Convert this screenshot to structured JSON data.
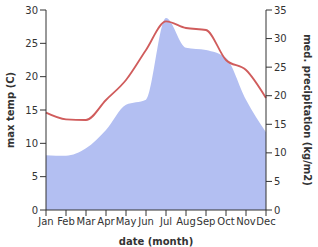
{
  "chart_data": {
    "type": "line",
    "x_label": "date (month)",
    "y_label": "max temp (C)",
    "y2_label": "med. precipitation (kg/m2)",
    "categories": [
      "Jan",
      "Feb",
      "Mar",
      "Apr",
      "May",
      "Jun",
      "Jul",
      "Aug",
      "Sep",
      "Oct",
      "Nov",
      "Dec"
    ],
    "series": [
      {
        "name": "max temp",
        "type": "line",
        "color": "#d05c5c",
        "values": [
          14.6,
          13.6,
          13.5,
          16.5,
          19.5,
          24.0,
          28.3,
          27.3,
          27.0,
          22.5,
          21.0,
          16.8
        ]
      },
      {
        "name": "med. precipitation",
        "type": "area",
        "axis": "y2",
        "color": "#b3bff2",
        "values": [
          9.6,
          9.5,
          10.8,
          14.0,
          18.4,
          19.3,
          33.6,
          28.4,
          28.0,
          26.6,
          19.3,
          13.6
        ]
      }
    ],
    "ylim": [
      0,
      30
    ],
    "yticks": [
      0,
      5,
      10,
      15,
      20,
      25,
      30
    ],
    "y2lim": [
      0,
      35
    ],
    "y2ticks": [
      0,
      5,
      10,
      15,
      20,
      25,
      30,
      35
    ],
    "grid": false
  }
}
